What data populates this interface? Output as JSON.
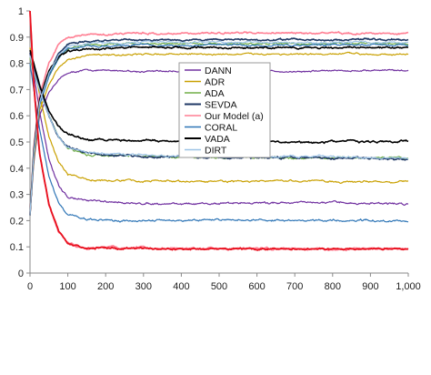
{
  "chart_data": {
    "type": "line",
    "title": "",
    "xlabel": "",
    "ylabel": "",
    "xlim": [
      0,
      1000
    ],
    "ylim": [
      0,
      1
    ],
    "x_ticks": [
      0,
      100,
      200,
      300,
      400,
      500,
      600,
      700,
      800,
      900,
      1000
    ],
    "x_tick_labels": [
      "0",
      "100",
      "200",
      "300",
      "400",
      "500",
      "600",
      "700",
      "800",
      "900",
      "1,000"
    ],
    "y_ticks": [
      0,
      0.1,
      0.2,
      0.3,
      0.4,
      0.5,
      0.6,
      0.7,
      0.8,
      0.9,
      1
    ],
    "y_tick_labels": [
      "0",
      "0.1",
      "0.2",
      "0.3",
      "0.4",
      "0.5",
      "0.6",
      "0.7",
      "0.8",
      "0.9",
      "1"
    ],
    "grid": false,
    "legend_position": "center",
    "series": [
      {
        "name": "DANN",
        "color": "#7030a0",
        "accuracy": [
          [
            0,
            0.22
          ],
          [
            10,
            0.42
          ],
          [
            25,
            0.6
          ],
          [
            50,
            0.69
          ],
          [
            75,
            0.74
          ],
          [
            100,
            0.765
          ],
          [
            150,
            0.775
          ],
          [
            300,
            0.77
          ],
          [
            500,
            0.77
          ],
          [
            700,
            0.77
          ],
          [
            1000,
            0.775
          ]
        ],
        "loss": [
          [
            0,
            0.84
          ],
          [
            10,
            0.76
          ],
          [
            25,
            0.62
          ],
          [
            50,
            0.43
          ],
          [
            75,
            0.33
          ],
          [
            100,
            0.29
          ],
          [
            150,
            0.275
          ],
          [
            200,
            0.27
          ],
          [
            300,
            0.265
          ],
          [
            500,
            0.265
          ],
          [
            700,
            0.27
          ],
          [
            900,
            0.265
          ],
          [
            1000,
            0.265
          ]
        ]
      },
      {
        "name": "ADR",
        "color": "#c9a000",
        "accuracy": [
          [
            0,
            0.22
          ],
          [
            10,
            0.43
          ],
          [
            25,
            0.62
          ],
          [
            50,
            0.72
          ],
          [
            75,
            0.78
          ],
          [
            100,
            0.815
          ],
          [
            150,
            0.83
          ],
          [
            300,
            0.835
          ],
          [
            500,
            0.835
          ],
          [
            700,
            0.835
          ],
          [
            1000,
            0.835
          ]
        ],
        "loss": [
          [
            0,
            0.86
          ],
          [
            10,
            0.8
          ],
          [
            25,
            0.68
          ],
          [
            50,
            0.52
          ],
          [
            75,
            0.42
          ],
          [
            100,
            0.375
          ],
          [
            150,
            0.355
          ],
          [
            300,
            0.35
          ],
          [
            500,
            0.35
          ],
          [
            700,
            0.35
          ],
          [
            1000,
            0.35
          ]
        ]
      },
      {
        "name": "ADA",
        "color": "#70ad47",
        "accuracy": [
          [
            0,
            0.22
          ],
          [
            10,
            0.45
          ],
          [
            25,
            0.64
          ],
          [
            50,
            0.75
          ],
          [
            75,
            0.82
          ],
          [
            100,
            0.86
          ],
          [
            150,
            0.87
          ],
          [
            300,
            0.875
          ],
          [
            500,
            0.875
          ],
          [
            700,
            0.875
          ],
          [
            1000,
            0.875
          ]
        ],
        "loss": [
          [
            0,
            0.82
          ],
          [
            10,
            0.76
          ],
          [
            25,
            0.7
          ],
          [
            50,
            0.6
          ],
          [
            75,
            0.52
          ],
          [
            100,
            0.48
          ],
          [
            150,
            0.45
          ],
          [
            300,
            0.445
          ],
          [
            500,
            0.44
          ],
          [
            700,
            0.44
          ],
          [
            1000,
            0.44
          ]
        ]
      },
      {
        "name": "SEVDA",
        "color": "#1f3864",
        "accuracy": [
          [
            0,
            0.22
          ],
          [
            10,
            0.46
          ],
          [
            25,
            0.65
          ],
          [
            50,
            0.76
          ],
          [
            75,
            0.84
          ],
          [
            100,
            0.875
          ],
          [
            150,
            0.885
          ],
          [
            300,
            0.89
          ],
          [
            500,
            0.89
          ],
          [
            700,
            0.89
          ],
          [
            1000,
            0.89
          ]
        ],
        "loss": [
          [
            0,
            0.84
          ],
          [
            10,
            0.78
          ],
          [
            25,
            0.71
          ],
          [
            50,
            0.6
          ],
          [
            75,
            0.52
          ],
          [
            100,
            0.48
          ],
          [
            150,
            0.455
          ],
          [
            300,
            0.445
          ],
          [
            500,
            0.44
          ],
          [
            700,
            0.44
          ],
          [
            1000,
            0.435
          ]
        ]
      },
      {
        "name": "Our Model (a)",
        "color": "#ff7f93",
        "accuracy": [
          [
            0,
            0.22
          ],
          [
            10,
            0.48
          ],
          [
            25,
            0.68
          ],
          [
            50,
            0.8
          ],
          [
            75,
            0.87
          ],
          [
            100,
            0.9
          ],
          [
            150,
            0.91
          ],
          [
            300,
            0.915
          ],
          [
            500,
            0.915
          ],
          [
            700,
            0.915
          ],
          [
            1000,
            0.915
          ]
        ],
        "loss": [
          [
            0,
            1.0
          ],
          [
            10,
            0.72
          ],
          [
            25,
            0.46
          ],
          [
            50,
            0.26
          ],
          [
            75,
            0.16
          ],
          [
            100,
            0.11
          ],
          [
            150,
            0.095
          ],
          [
            300,
            0.093
          ],
          [
            500,
            0.093
          ],
          [
            700,
            0.093
          ],
          [
            1000,
            0.092
          ]
        ]
      },
      {
        "name": "CORAL",
        "color": "#2e75b6",
        "accuracy": [
          [
            0,
            0.22
          ],
          [
            10,
            0.45
          ],
          [
            25,
            0.64
          ],
          [
            50,
            0.75
          ],
          [
            75,
            0.82
          ],
          [
            100,
            0.855
          ],
          [
            150,
            0.865
          ],
          [
            300,
            0.87
          ],
          [
            500,
            0.87
          ],
          [
            700,
            0.87
          ],
          [
            1000,
            0.87
          ]
        ],
        "loss": [
          [
            0,
            0.8
          ],
          [
            10,
            0.7
          ],
          [
            25,
            0.55
          ],
          [
            50,
            0.37
          ],
          [
            75,
            0.27
          ],
          [
            100,
            0.225
          ],
          [
            150,
            0.205
          ],
          [
            300,
            0.2
          ],
          [
            500,
            0.2
          ],
          [
            700,
            0.2
          ],
          [
            1000,
            0.2
          ]
        ]
      },
      {
        "name": "VADA",
        "color": "#000000",
        "accuracy": [
          [
            0,
            0.22
          ],
          [
            10,
            0.47
          ],
          [
            25,
            0.66
          ],
          [
            50,
            0.77
          ],
          [
            75,
            0.82
          ],
          [
            100,
            0.845
          ],
          [
            150,
            0.855
          ],
          [
            300,
            0.86
          ],
          [
            500,
            0.86
          ],
          [
            700,
            0.86
          ],
          [
            1000,
            0.86
          ]
        ],
        "loss": [
          [
            0,
            0.85
          ],
          [
            10,
            0.8
          ],
          [
            25,
            0.72
          ],
          [
            50,
            0.62
          ],
          [
            75,
            0.56
          ],
          [
            100,
            0.53
          ],
          [
            150,
            0.51
          ],
          [
            300,
            0.505
          ],
          [
            500,
            0.5
          ],
          [
            700,
            0.5
          ],
          [
            1000,
            0.5
          ]
        ]
      },
      {
        "name": "DIRT",
        "color": "#9dc3e6",
        "accuracy": [
          [
            0,
            0.22
          ],
          [
            10,
            0.46
          ],
          [
            25,
            0.65
          ],
          [
            50,
            0.76
          ],
          [
            75,
            0.83
          ],
          [
            100,
            0.865
          ],
          [
            150,
            0.875
          ],
          [
            300,
            0.88
          ],
          [
            500,
            0.88
          ],
          [
            700,
            0.88
          ],
          [
            1000,
            0.88
          ]
        ],
        "loss": [
          [
            0,
            0.83
          ],
          [
            10,
            0.77
          ],
          [
            25,
            0.7
          ],
          [
            50,
            0.6
          ],
          [
            75,
            0.52
          ],
          [
            100,
            0.48
          ],
          [
            150,
            0.46
          ],
          [
            300,
            0.45
          ],
          [
            500,
            0.445
          ],
          [
            700,
            0.445
          ],
          [
            1000,
            0.44
          ]
        ]
      }
    ]
  }
}
